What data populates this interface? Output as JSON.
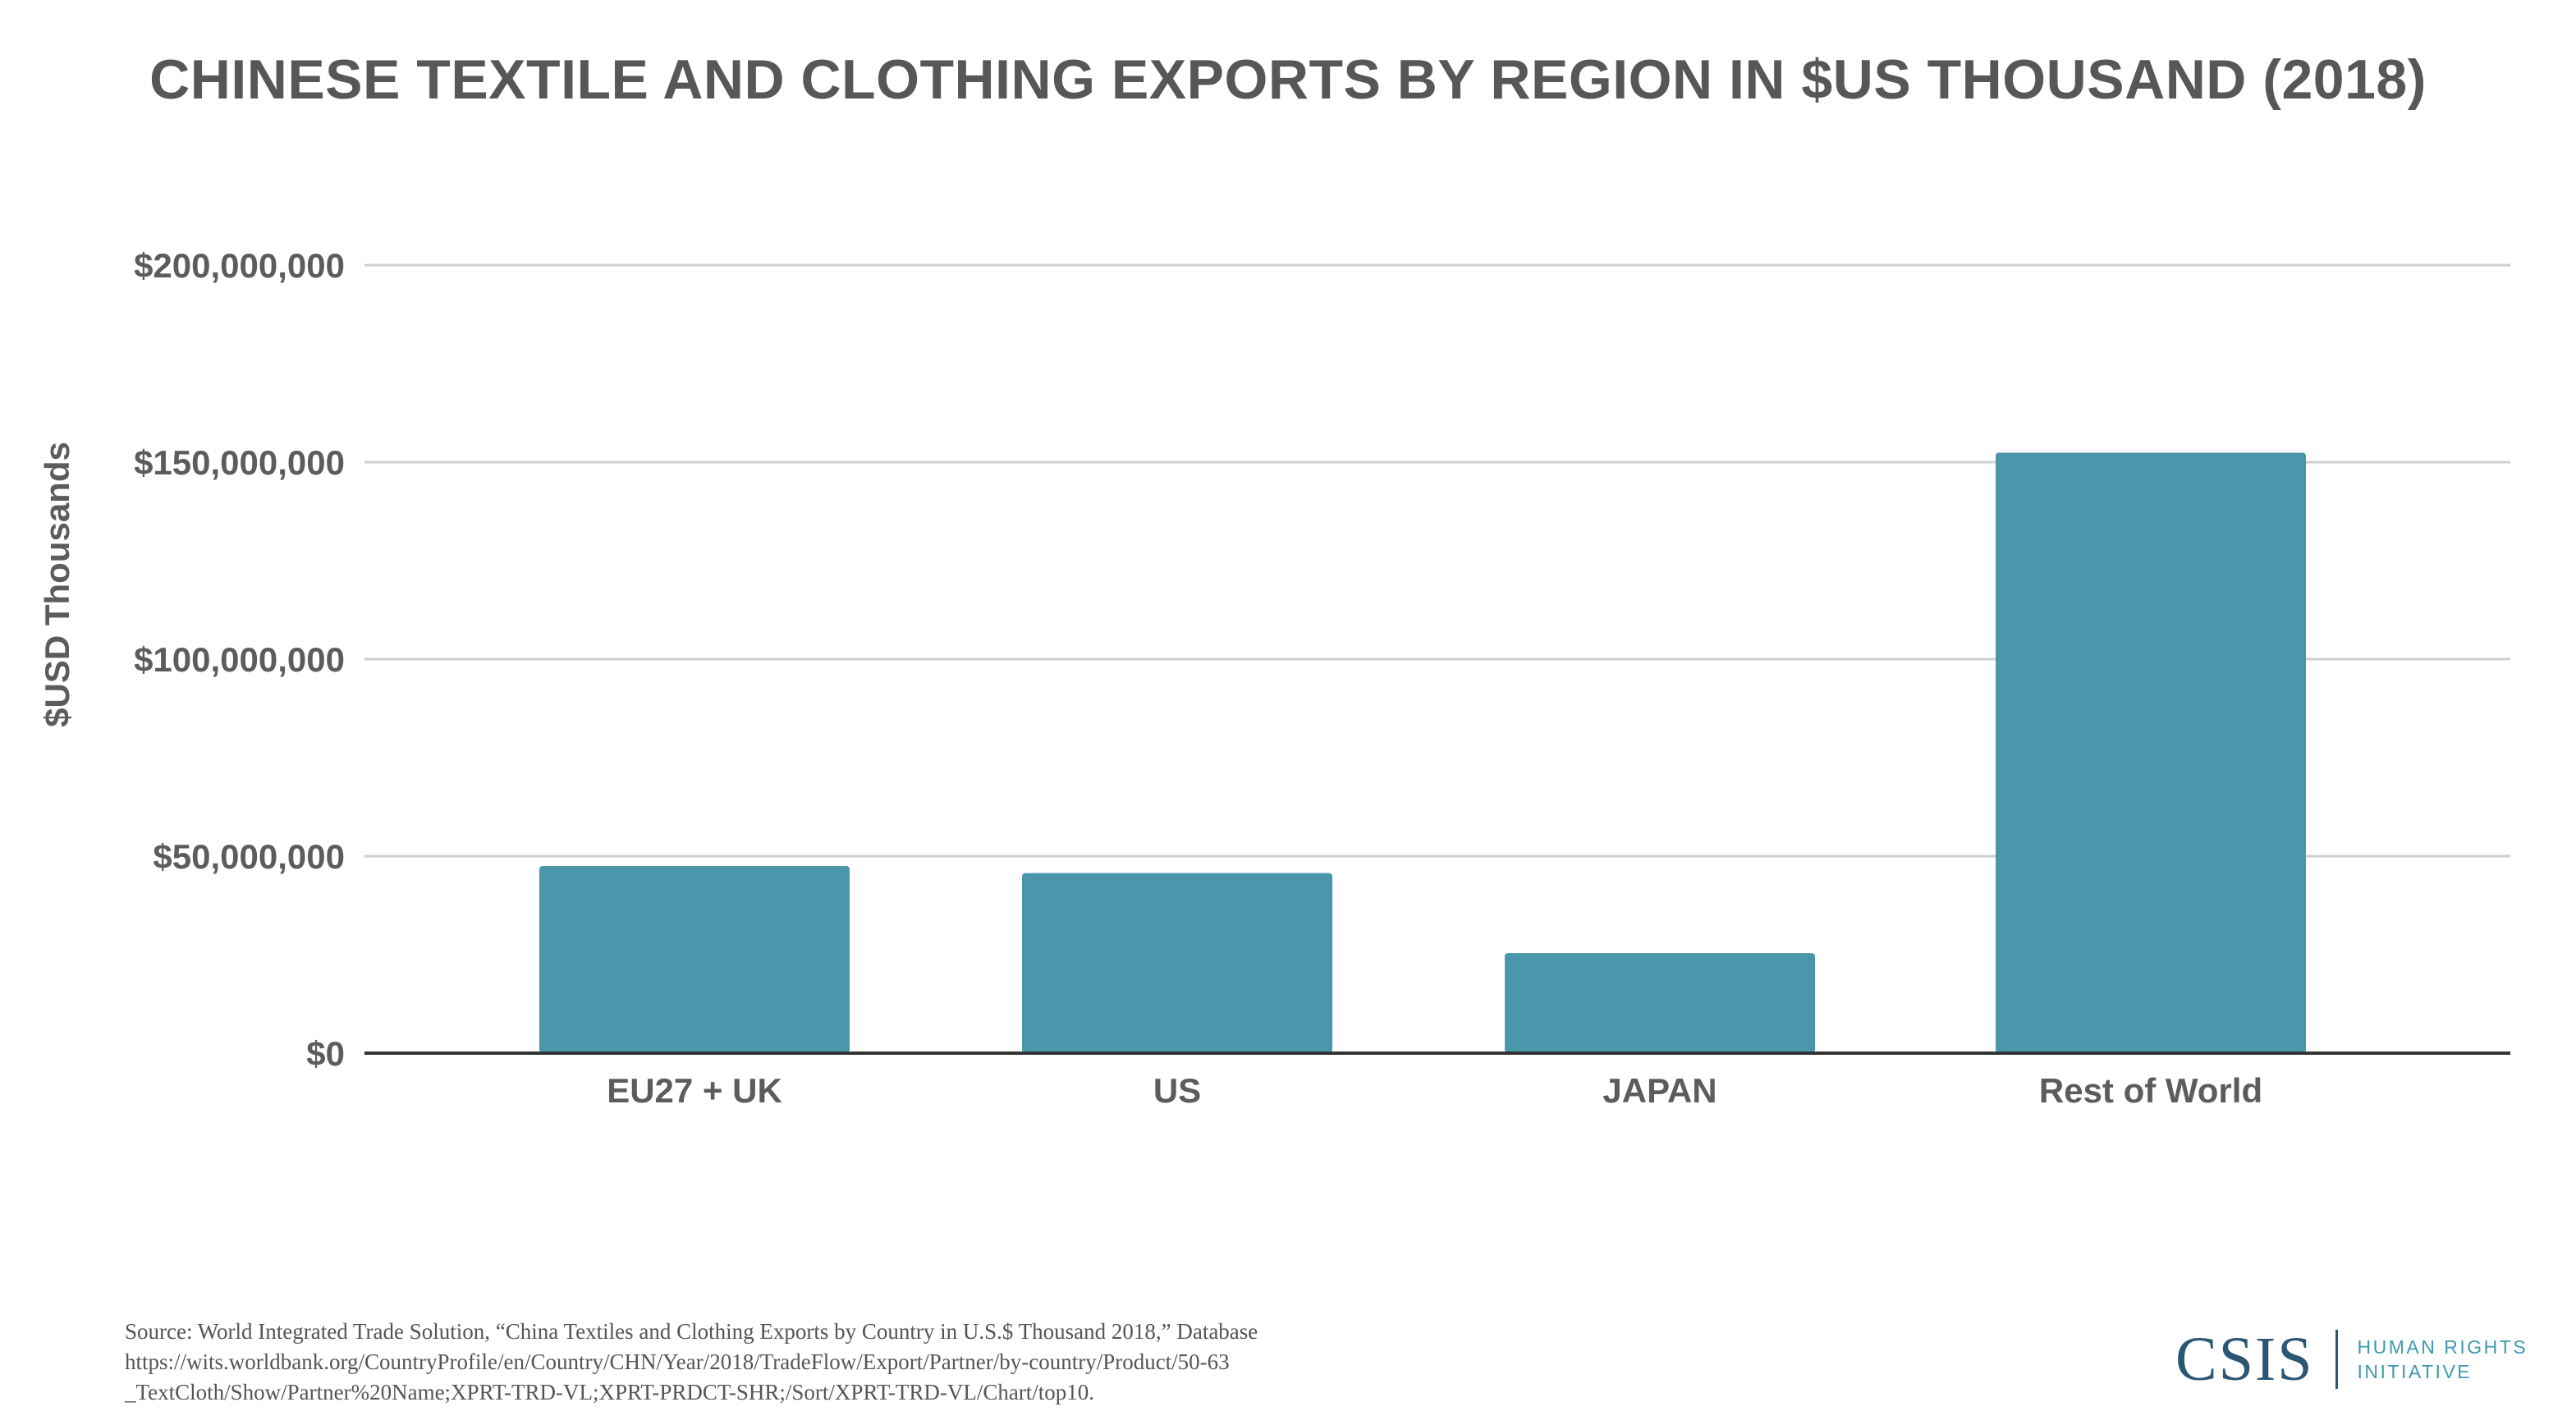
{
  "chart_data": {
    "type": "bar",
    "title": "CHINESE TEXTILE AND CLOTHING EXPORTS BY REGION IN $US THOUSAND (2018)",
    "ylabel": "$USD Thousands",
    "xlabel": "",
    "categories": [
      "EU27 + UK",
      "US",
      "JAPAN",
      "Rest of World"
    ],
    "values": [
      47500000,
      45700000,
      25400000,
      152400000
    ],
    "ylim": [
      0,
      200000000
    ],
    "yticks": [
      0,
      50000000,
      100000000,
      150000000,
      200000000
    ],
    "ytick_labels": [
      "$0",
      "$50,000,000",
      "$100,000,000",
      "$150,000,000",
      "$200,000,000"
    ],
    "bar_color": "#4a96aa",
    "grid": true,
    "legend": "none"
  },
  "footer": {
    "source_lines": [
      "Source: World Integrated Trade Solution, “China Textiles and Clothing Exports by Country in U.S.$ Thousand 2018,” Database",
      "https://wits.worldbank.org/CountryProfile/en/Country/CHN/Year/2018/TradeFlow/Export/Partner/by-country/Product/50-63",
      "_TextCloth/Show/Partner%20Name;XPRT-TRD-VL;XPRT-PRDCT-SHR;/Sort/XPRT-TRD-VL/Chart/top10."
    ]
  },
  "logo": {
    "name": "CSIS",
    "subtitle_line1": "HUMAN RIGHTS",
    "subtitle_line2": "INITIATIVE",
    "color": "#2b5775",
    "accent": "#3f9ab0"
  }
}
